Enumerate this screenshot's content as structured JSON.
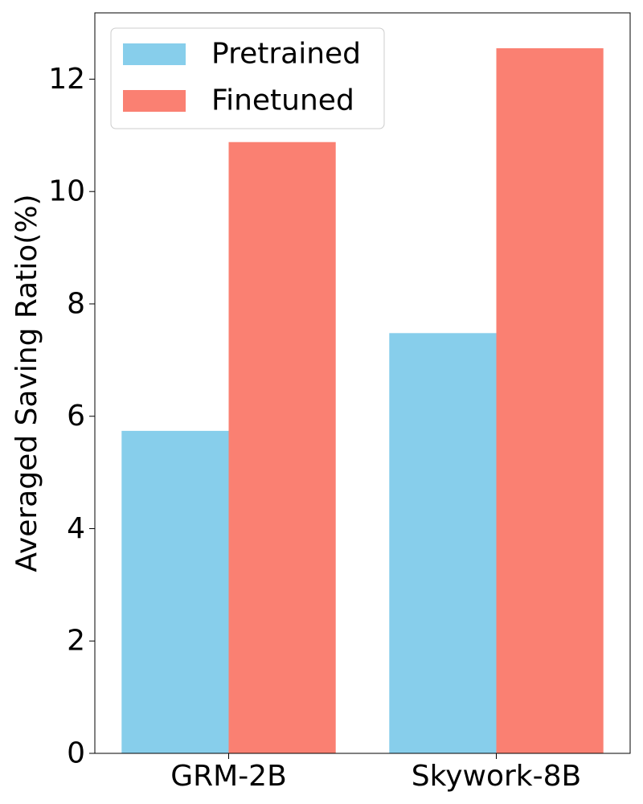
{
  "chart_data": {
    "type": "bar",
    "title": "",
    "xlabel": "",
    "ylabel": "Averaged Saving Ratio(%)",
    "categories": [
      "GRM-2B",
      "Skywork-8B"
    ],
    "series": [
      {
        "name": "Pretrained",
        "values": [
          5.74,
          7.48
        ],
        "color": "#87CEEB"
      },
      {
        "name": "Finetuned",
        "values": [
          10.88,
          12.55
        ],
        "color": "#FA8072"
      }
    ],
    "ylim": [
      0,
      13.18
    ],
    "yticks": [
      0,
      2,
      4,
      6,
      8,
      10,
      12
    ],
    "grid": false,
    "legend_position": "upper-left"
  }
}
